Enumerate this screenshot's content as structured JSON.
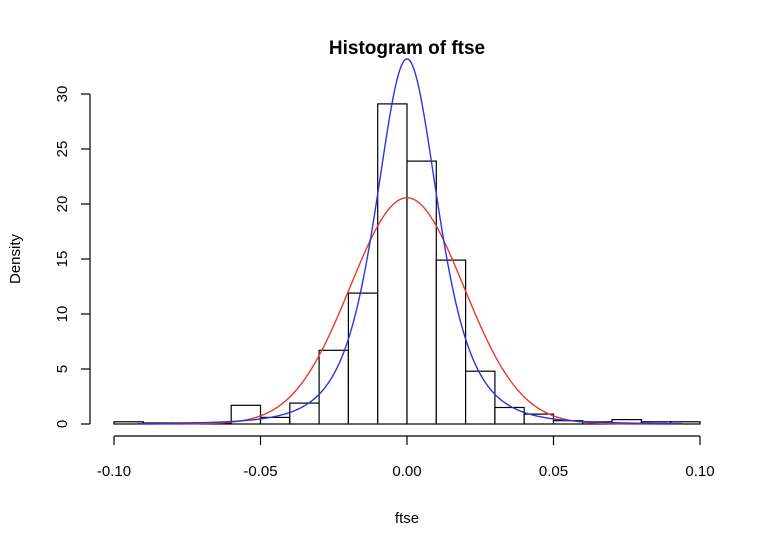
{
  "chart_data": {
    "type": "bar",
    "title": "Histogram of ftse",
    "xlabel": "ftse",
    "ylabel": "Density",
    "xlim": [
      -0.1,
      0.1
    ],
    "ylim": [
      0,
      30
    ],
    "x_ticks": [
      "-0.10",
      "-0.05",
      "0.00",
      "0.05",
      "0.10"
    ],
    "y_ticks": [
      "0",
      "5",
      "10",
      "15",
      "20",
      "25",
      "30"
    ],
    "grid": false,
    "bin_edges": [
      -0.1,
      -0.09,
      -0.08,
      -0.07,
      -0.06,
      -0.05,
      -0.04,
      -0.03,
      -0.02,
      -0.01,
      0.0,
      0.01,
      0.02,
      0.03,
      0.04,
      0.05,
      0.06,
      0.07,
      0.08,
      0.09,
      0.1
    ],
    "densities": [
      0.2,
      0.1,
      0.1,
      0.1,
      1.7,
      0.6,
      1.9,
      6.7,
      11.9,
      29.1,
      23.9,
      14.9,
      4.8,
      1.5,
      0.9,
      0.3,
      0.2,
      0.4,
      0.2,
      0.2
    ],
    "curves": [
      {
        "distribution": "normal",
        "mean": 0.0,
        "sd": 0.0194,
        "color": "#e8392f",
        "x_range": [
          -0.092,
          0.094
        ]
      },
      {
        "distribution": "t",
        "location": 0.0,
        "scale": 0.0112,
        "df": 3.5,
        "color": "#2a36d9",
        "x_range": [
          -0.092,
          0.094
        ]
      }
    ],
    "bar_stroke": "#000000",
    "bar_fill": "#ffffff"
  }
}
